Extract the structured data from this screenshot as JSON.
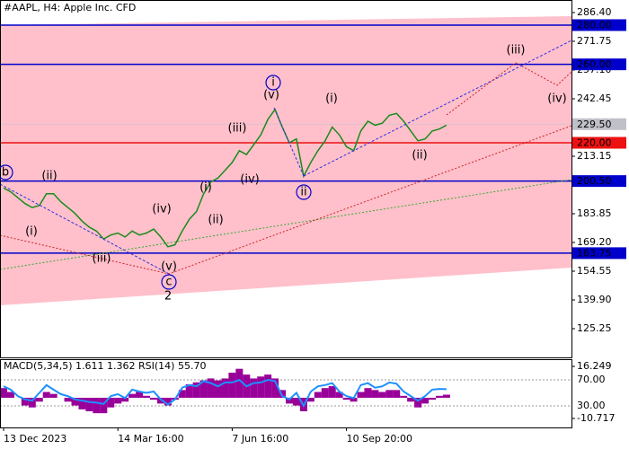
{
  "chart_data": [
    {
      "type": "line",
      "title": "#AAPL, H4:  Apple Inc. CFD",
      "categories": [
        "13 Dec 2023",
        null,
        null,
        null,
        null,
        null,
        null,
        null,
        null,
        null,
        null,
        null,
        null,
        null,
        null,
        null,
        "14 Mar 16:00",
        null,
        null,
        null,
        null,
        null,
        null,
        null,
        null,
        null,
        null,
        null,
        null,
        null,
        null,
        null,
        "7 Jun 16:00",
        null,
        null,
        null,
        null,
        null,
        null,
        null,
        null,
        null,
        null,
        null,
        null,
        null,
        null,
        null,
        "10 Sep 20:00",
        null,
        null,
        null,
        null,
        null,
        null,
        null,
        null,
        null,
        null,
        null,
        null,
        null,
        null
      ],
      "series": [
        {
          "name": "AAPL",
          "color": "#1a8a1a",
          "values": [
            197,
            195,
            192,
            189,
            187,
            188,
            194,
            194,
            190,
            187,
            184,
            180,
            177,
            175,
            171,
            173,
            174,
            172,
            175,
            173,
            174,
            176,
            172,
            167,
            168,
            175,
            181,
            185,
            194,
            200,
            202,
            206,
            210,
            216,
            214,
            219,
            224,
            232,
            237,
            228,
            220,
            222,
            203,
            210,
            216,
            221,
            228,
            224,
            218,
            216,
            226,
            231,
            229,
            230,
            234,
            235,
            231,
            226,
            221,
            222,
            226,
            227,
            229
          ]
        }
      ],
      "ylim": [
        110.6,
        292.8
      ],
      "yticks": [
        {
          "value": 286.4,
          "label": "286.40"
        },
        {
          "value": 271.75,
          "label": "271.75"
        },
        {
          "value": 257.1,
          "label": "257.10"
        },
        {
          "value": 242.45,
          "label": "242.45"
        },
        {
          "value": 213.15,
          "label": "213.15"
        },
        {
          "value": 183.85,
          "label": "183.85"
        },
        {
          "value": 169.2,
          "label": "169.20"
        },
        {
          "value": 154.55,
          "label": "154.55"
        },
        {
          "value": 139.9,
          "label": "139.90"
        },
        {
          "value": 125.25,
          "label": "125.25"
        }
      ],
      "levels": [
        {
          "value": 280,
          "label": "280.00",
          "color": "#0000cc"
        },
        {
          "value": 260,
          "label": "260.00",
          "color": "#0000cc"
        },
        {
          "value": 229.5,
          "label": "229.50",
          "color": "#c0c0c8"
        },
        {
          "value": 220,
          "label": "220.00",
          "color": "#ee1111"
        },
        {
          "value": 200.5,
          "label": "200.50",
          "color": "#0000cc"
        },
        {
          "value": 163.75,
          "label": "163.75",
          "color": "#0000cc"
        }
      ],
      "annotations": [
        {
          "text": "b",
          "color": "#0000cc"
        },
        {
          "text": "(i)",
          "color": "#cc0000"
        },
        {
          "text": "(ii)",
          "color": "#cc0000"
        },
        {
          "text": "(iii)",
          "color": "#cc0000"
        },
        {
          "text": "(iv)",
          "color": "#cc0000"
        },
        {
          "text": "(v)",
          "color": "#cc0000"
        },
        {
          "text": "c",
          "color": "#0000cc"
        },
        {
          "text": "2",
          "color": "#800000"
        },
        {
          "text": "(i)",
          "color": "#cc0000"
        },
        {
          "text": "(ii)",
          "color": "#cc0000"
        },
        {
          "text": "(iii)",
          "color": "#cc0000"
        },
        {
          "text": "(iv)",
          "color": "#cc0000"
        },
        {
          "text": "(v)",
          "color": "#cc0000"
        },
        {
          "text": "i",
          "color": "#0000cc"
        },
        {
          "text": "ii",
          "color": "#0000cc"
        },
        {
          "text": "(i)",
          "color": "#cc0000"
        },
        {
          "text": "(ii)",
          "color": "#cc0000"
        },
        {
          "text": "(iii)",
          "color": "#cc0000"
        },
        {
          "text": "(iv)",
          "color": "#cc0000"
        }
      ]
    },
    {
      "type": "bar",
      "title": "MACD(5,34,5) 1.611 1.362 RSI(14) 55.70",
      "series": [
        {
          "name": "MACD",
          "color": "#990099",
          "values": [
            5,
            3,
            0,
            -4,
            -5,
            -2,
            3,
            2,
            0,
            -2,
            -4,
            -6,
            -7,
            -8,
            -8,
            -5,
            -3,
            -2,
            2,
            3,
            1,
            -1,
            -3,
            -4,
            -1,
            4,
            7,
            8,
            9,
            10,
            9,
            10,
            13,
            15,
            12,
            10,
            11,
            12,
            10,
            4,
            -3,
            -4,
            -7,
            -2,
            3,
            5,
            6,
            3,
            -1,
            -2,
            3,
            5,
            4,
            3,
            4,
            4,
            1,
            -2,
            -5,
            -3,
            -1,
            1,
            1.6
          ]
        },
        {
          "name": "RSI",
          "color": "#1e90ff",
          "axis": "y2",
          "values": [
            60,
            55,
            45,
            40,
            38,
            50,
            62,
            55,
            48,
            45,
            40,
            38,
            36,
            35,
            33,
            45,
            48,
            42,
            55,
            52,
            50,
            52,
            40,
            32,
            40,
            58,
            62,
            60,
            68,
            65,
            60,
            66,
            66,
            70,
            60,
            65,
            66,
            70,
            68,
            45,
            40,
            50,
            30,
            52,
            60,
            62,
            65,
            52,
            45,
            42,
            62,
            65,
            58,
            60,
            66,
            64,
            52,
            45,
            38,
            45,
            55,
            56,
            55.7
          ]
        }
      ],
      "ylim": [
        -15.37,
        19.97
      ],
      "yticks": [
        16.249,
        -10.717
      ],
      "y2lim": [
        -3.1,
        101.7
      ],
      "y2ticks": [
        {
          "value": 70,
          "label": "70.00"
        },
        {
          "value": 30,
          "label": "30.00"
        }
      ]
    }
  ]
}
